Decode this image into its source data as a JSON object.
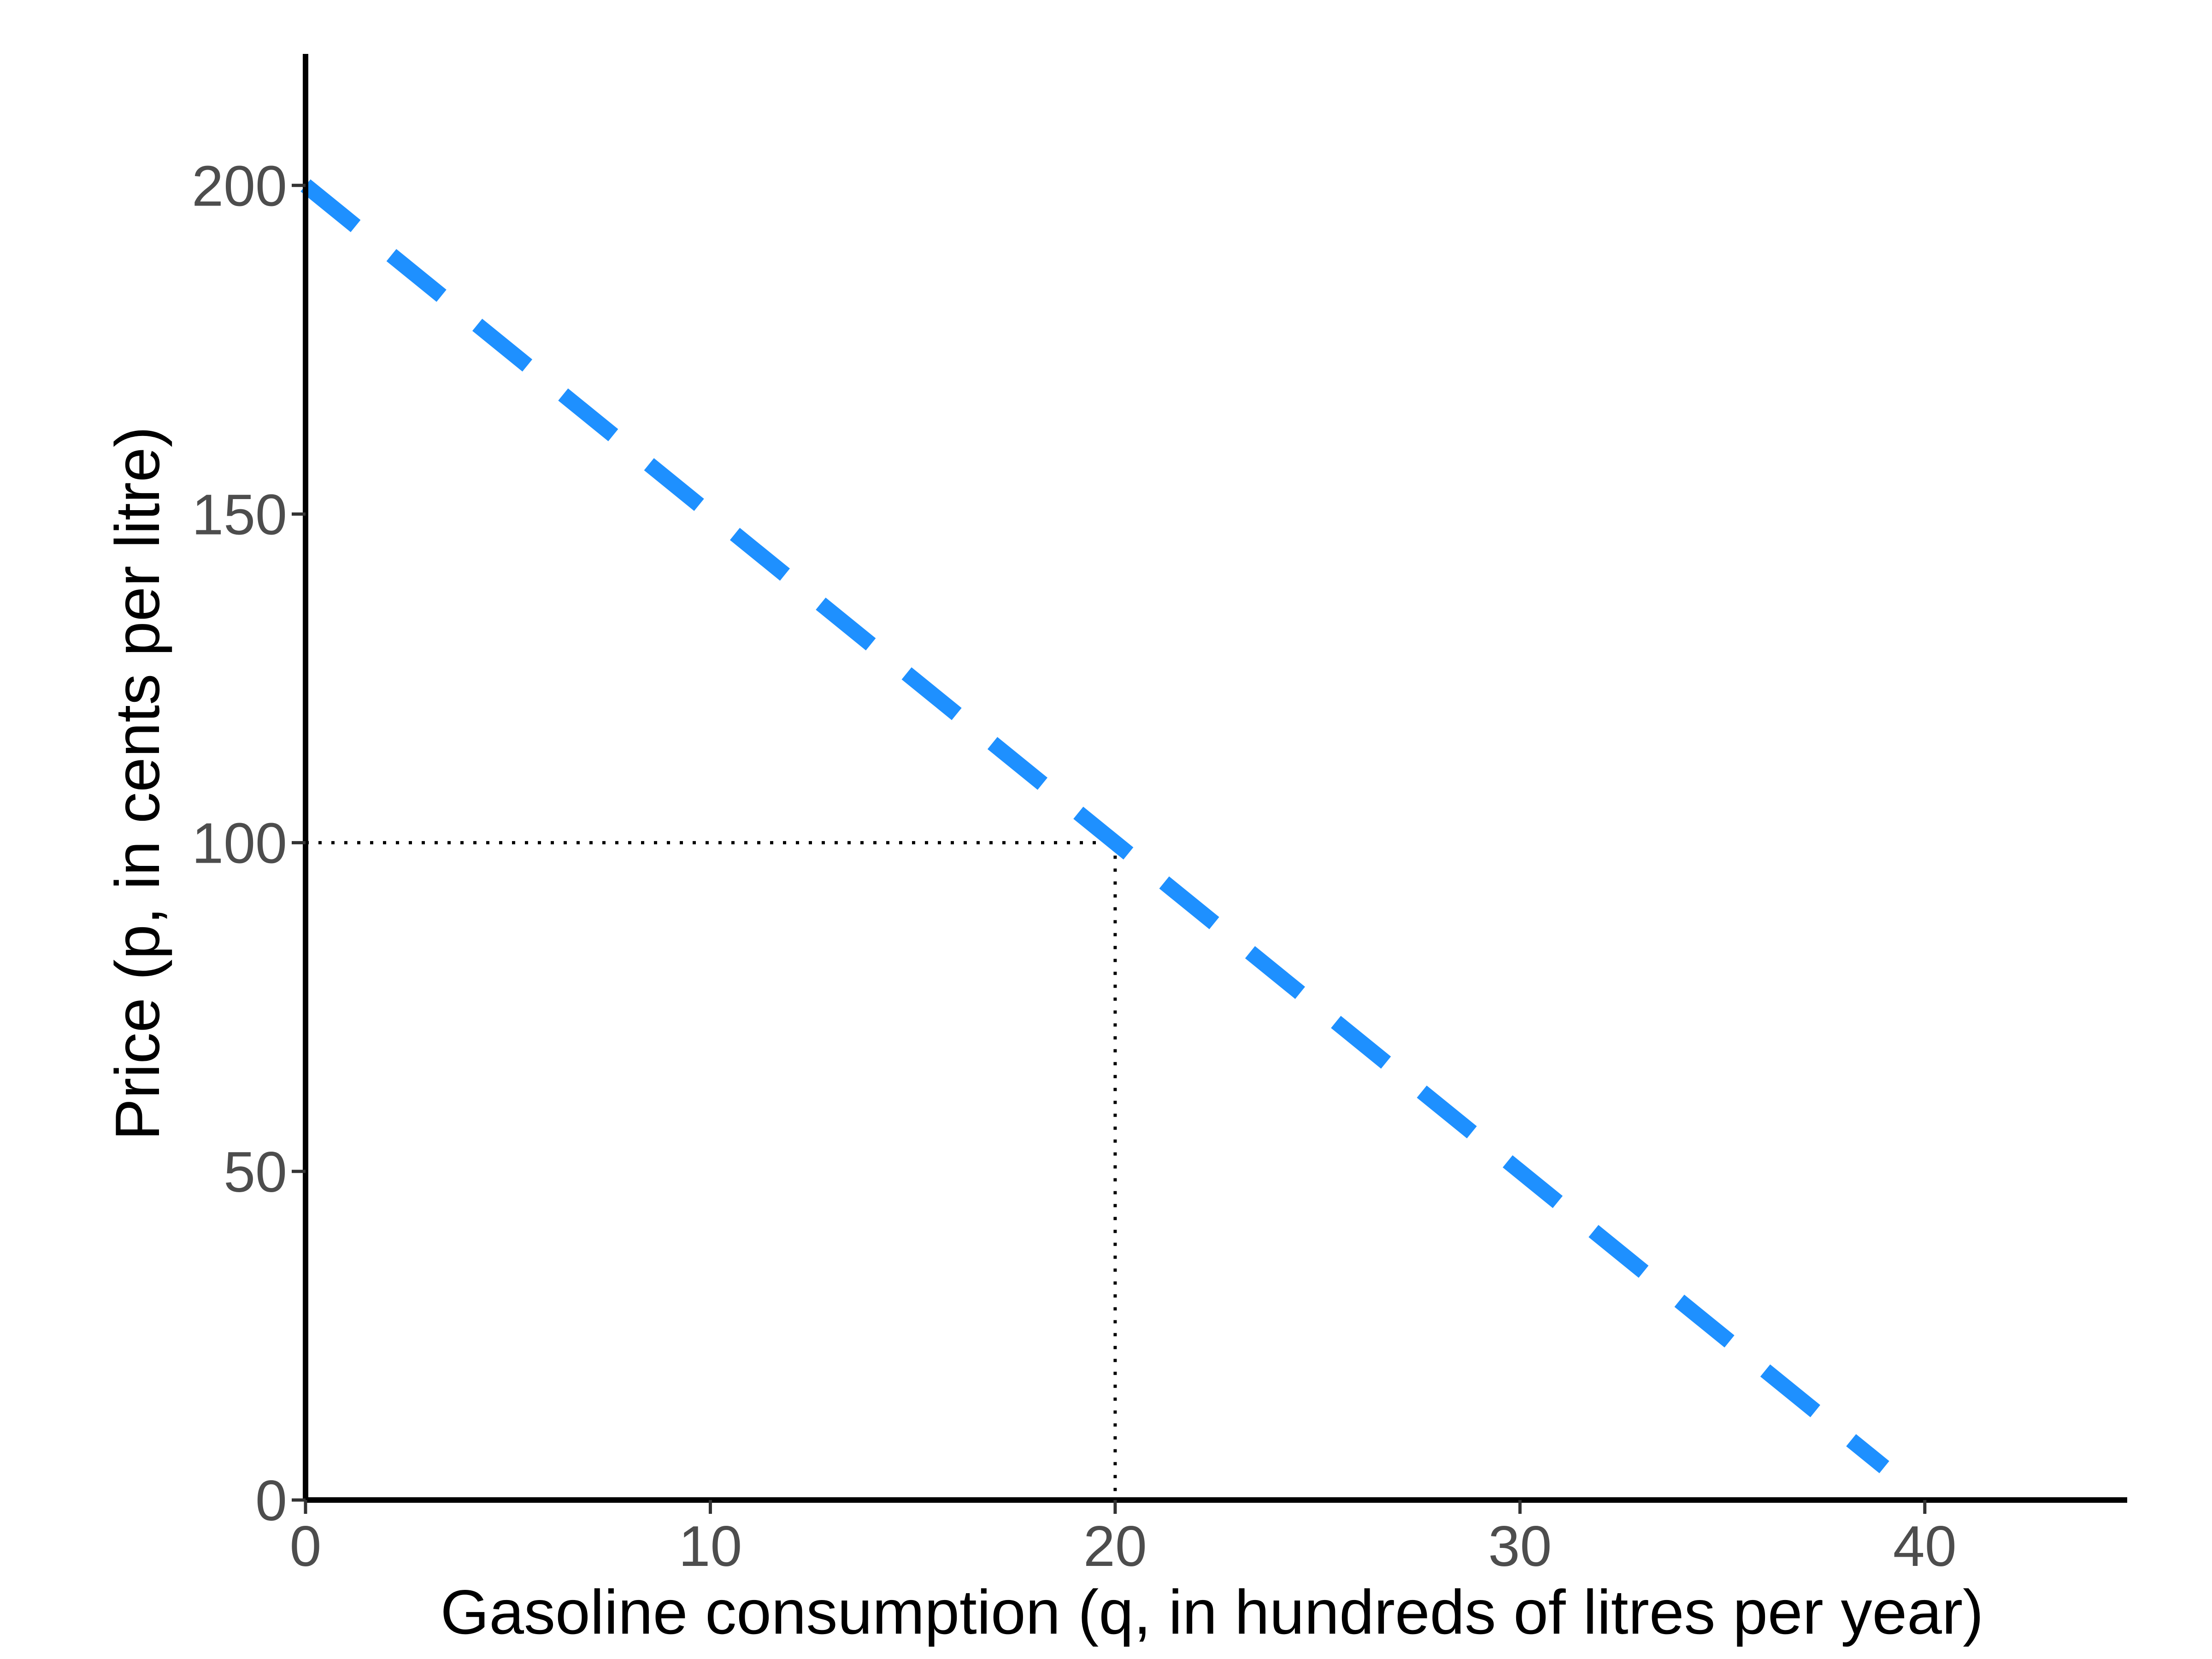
{
  "chart_data": {
    "type": "line",
    "title": "",
    "xlabel": "Gasoline consumption (q, in hundreds of litres per year)",
    "ylabel": "Price (p, in cents per litre)",
    "xlim": [
      0,
      45
    ],
    "ylim": [
      0,
      220
    ],
    "x_ticks": [
      0,
      10,
      20,
      30,
      40
    ],
    "y_ticks": [
      0,
      50,
      100,
      150,
      200
    ],
    "grid": false,
    "legend": "none",
    "series": [
      {
        "line_style": "dashed",
        "color": "#1e90ff",
        "x": [
          0,
          39
        ],
        "y": [
          200,
          5
        ]
      }
    ],
    "reference_lines": {
      "line_style": "dotted",
      "color": "#000000",
      "x": 20,
      "y": 100
    }
  }
}
